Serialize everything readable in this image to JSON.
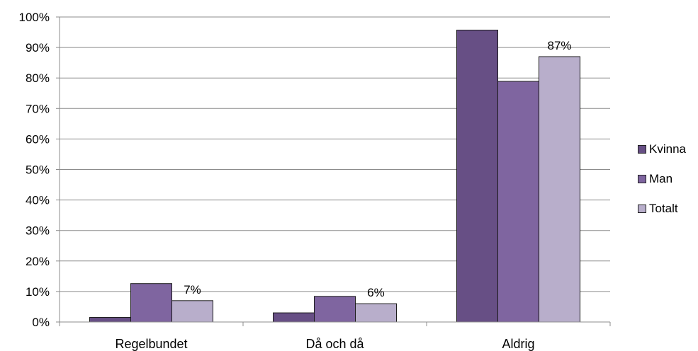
{
  "chart_data": {
    "type": "bar",
    "categories": [
      "Regelbundet",
      "Då och då",
      "Aldrig"
    ],
    "series": [
      {
        "name": "Kvinna",
        "values": [
          1.5,
          3,
          95.7
        ],
        "color": "#674f85"
      },
      {
        "name": "Man",
        "values": [
          12.6,
          8.4,
          78.9
        ],
        "color": "#7f65a0"
      },
      {
        "name": "Totalt",
        "values": [
          7,
          6,
          87
        ],
        "color": "#b8aecb"
      }
    ],
    "data_labels": [
      {
        "series": "Totalt",
        "category": "Regelbundet",
        "text": "7%"
      },
      {
        "series": "Totalt",
        "category": "Då och då",
        "text": "6%"
      },
      {
        "series": "Totalt",
        "category": "Aldrig",
        "text": "87%"
      }
    ],
    "y_ticks": [
      "0%",
      "10%",
      "20%",
      "30%",
      "40%",
      "50%",
      "60%",
      "70%",
      "80%",
      "90%",
      "100%"
    ],
    "ylim": [
      0,
      100
    ],
    "grid": true,
    "legend_position": "right",
    "title": "",
    "xlabel": "",
    "ylabel": ""
  }
}
